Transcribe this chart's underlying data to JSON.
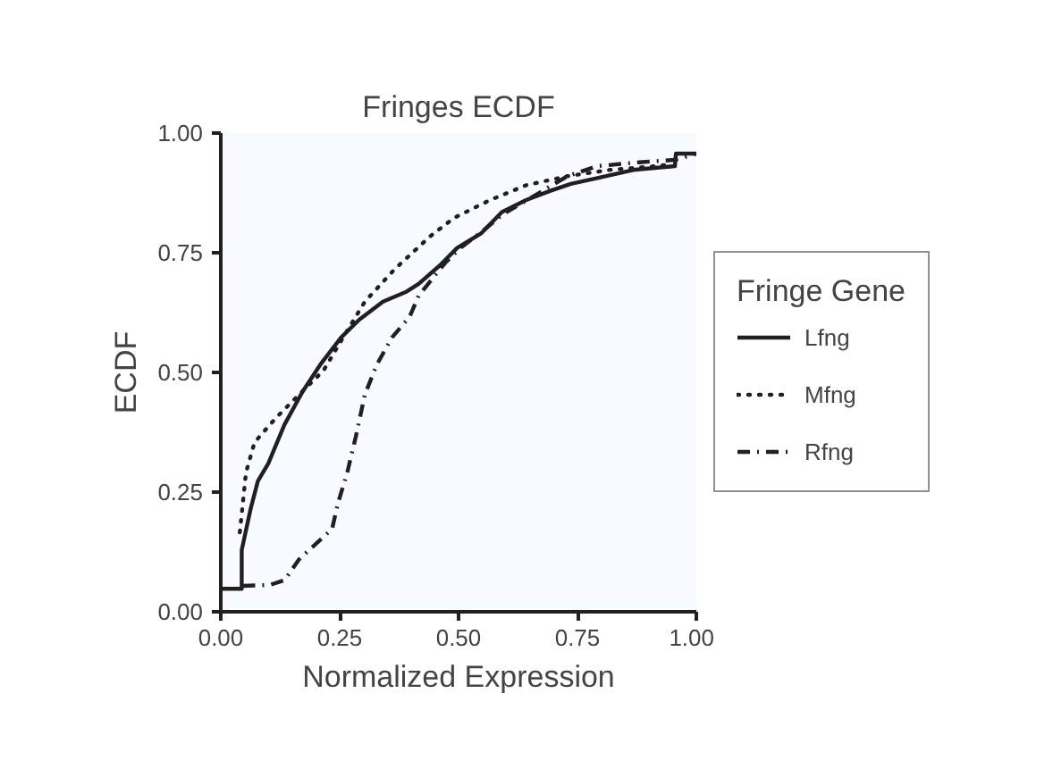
{
  "chart_data": {
    "type": "line",
    "title": "Fringes ECDF",
    "xlabel": "Normalized Expression",
    "ylabel": "ECDF",
    "legend_title": "Fringe Gene",
    "legend": "right",
    "grid": false,
    "xlim": [
      0,
      1
    ],
    "ylim": [
      0,
      1
    ],
    "xticks": [
      {
        "value": 0,
        "label": "0.00"
      },
      {
        "value": 0.25,
        "label": "0.25"
      },
      {
        "value": 0.5,
        "label": "0.50"
      },
      {
        "value": 0.75,
        "label": "0.75"
      },
      {
        "value": 1,
        "label": "1.00"
      }
    ],
    "yticks": [
      {
        "value": 0,
        "label": "0.00"
      },
      {
        "value": 0.25,
        "label": "0.25"
      },
      {
        "value": 0.5,
        "label": "0.50"
      },
      {
        "value": 0.75,
        "label": "0.75"
      },
      {
        "value": 1,
        "label": "1.00"
      }
    ],
    "series": [
      {
        "name": "Lfng",
        "color": "#231f20",
        "line_style": "solid",
        "x": [
          0,
          0.044,
          0.044,
          0.063,
          0.078,
          0.1,
          0.134,
          0.172,
          0.209,
          0.253,
          0.291,
          0.341,
          0.391,
          0.416,
          0.46,
          0.497,
          0.548,
          0.591,
          0.642,
          0.692,
          0.736,
          0.792,
          0.867,
          0.955,
          0.957,
          1.0
        ],
        "values": [
          0.048,
          0.048,
          0.129,
          0.216,
          0.273,
          0.31,
          0.391,
          0.46,
          0.516,
          0.573,
          0.61,
          0.648,
          0.669,
          0.685,
          0.723,
          0.76,
          0.791,
          0.835,
          0.86,
          0.879,
          0.894,
          0.906,
          0.923,
          0.931,
          0.957,
          0.957
        ]
      },
      {
        "name": "Mfng",
        "color": "#231f20",
        "line_style": "dotted",
        "x": [
          0.04,
          0.053,
          0.071,
          0.115,
          0.165,
          0.216,
          0.253,
          0.303,
          0.366,
          0.441,
          0.491,
          0.566,
          0.642,
          0.729,
          0.817,
          0.917,
          0.95
        ],
        "values": [
          0.166,
          0.291,
          0.354,
          0.404,
          0.454,
          0.504,
          0.566,
          0.648,
          0.716,
          0.785,
          0.823,
          0.86,
          0.891,
          0.91,
          0.923,
          0.931,
          0.935
        ]
      },
      {
        "name": "Rfng",
        "color": "#231f20",
        "line_style": "dashdot",
        "x": [
          0.046,
          0.103,
          0.134,
          0.165,
          0.234,
          0.247,
          0.266,
          0.284,
          0.303,
          0.328,
          0.36,
          0.397,
          0.416,
          0.441,
          0.472,
          0.504,
          0.554,
          0.591,
          0.654,
          0.729,
          0.792,
          0.88,
          0.955,
          1.0
        ],
        "values": [
          0.054,
          0.056,
          0.066,
          0.11,
          0.173,
          0.229,
          0.291,
          0.366,
          0.454,
          0.516,
          0.573,
          0.616,
          0.66,
          0.691,
          0.729,
          0.76,
          0.798,
          0.829,
          0.866,
          0.91,
          0.931,
          0.939,
          0.944,
          0.957
        ]
      }
    ]
  }
}
